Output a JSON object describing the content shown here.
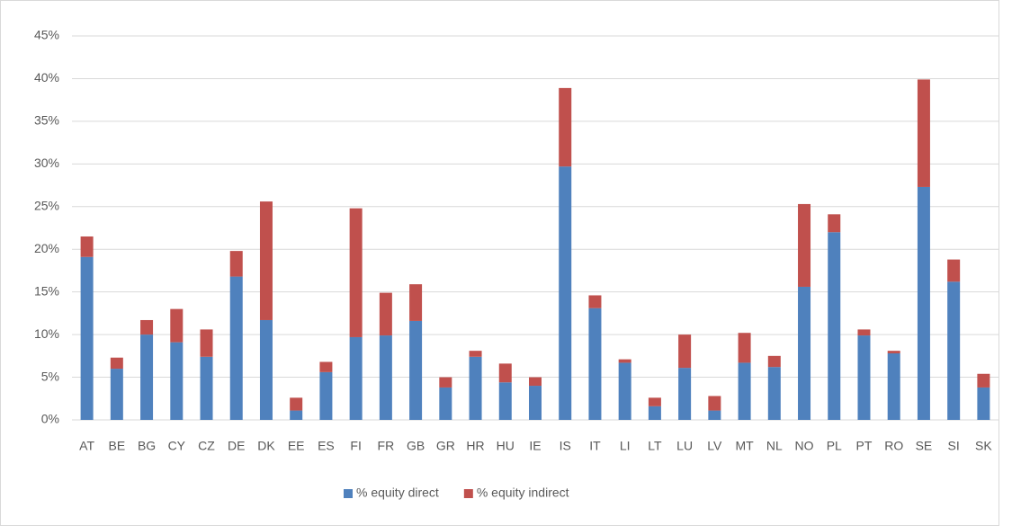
{
  "chart_data": {
    "type": "stacked-bar",
    "categories": [
      "AT",
      "BE",
      "BG",
      "CY",
      "CZ",
      "DE",
      "DK",
      "EE",
      "ES",
      "FI",
      "FR",
      "GB",
      "GR",
      "HR",
      "HU",
      "IE",
      "IS",
      "IT",
      "LI",
      "LT",
      "LU",
      "LV",
      "MT",
      "NL",
      "NO",
      "PL",
      "PT",
      "RO",
      "SE",
      "SI",
      "SK"
    ],
    "series": [
      {
        "name": "% equity direct",
        "color": "#4f81bd",
        "values": [
          19.1,
          6.0,
          10.0,
          9.1,
          7.4,
          16.8,
          11.7,
          1.1,
          5.6,
          9.7,
          9.9,
          11.6,
          3.8,
          7.4,
          4.4,
          4.0,
          29.7,
          13.1,
          6.7,
          1.6,
          6.1,
          1.1,
          6.7,
          6.2,
          15.6,
          22.0,
          9.9,
          7.8,
          27.3,
          16.2,
          3.8
        ]
      },
      {
        "name": "% equity indirect",
        "color": "#c0504d",
        "values": [
          2.4,
          1.3,
          1.7,
          3.9,
          3.2,
          3.0,
          13.9,
          1.5,
          1.2,
          15.1,
          5.0,
          4.3,
          1.2,
          0.7,
          2.2,
          1.0,
          9.2,
          1.5,
          0.4,
          1.0,
          3.9,
          1.7,
          3.5,
          1.3,
          9.7,
          2.1,
          0.7,
          0.3,
          12.6,
          2.6,
          1.6
        ]
      }
    ],
    "ylim": [
      0,
      45
    ],
    "yticks": [
      {
        "value": 0,
        "label": "0%"
      },
      {
        "value": 5,
        "label": "5%"
      },
      {
        "value": 10,
        "label": "10%"
      },
      {
        "value": 15,
        "label": "15%"
      },
      {
        "value": 20,
        "label": "20%"
      },
      {
        "value": 25,
        "label": "25%"
      },
      {
        "value": 30,
        "label": "30%"
      },
      {
        "value": 35,
        "label": "35%"
      },
      {
        "value": 40,
        "label": "40%"
      },
      {
        "value": 45,
        "label": "45%"
      }
    ],
    "grid": true,
    "legend": "bottom"
  }
}
